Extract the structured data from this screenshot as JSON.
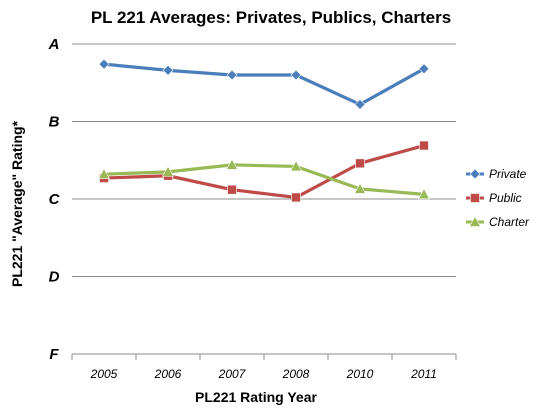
{
  "chart_data": {
    "type": "line",
    "title": "PL 221 Averages: Privates, Publics, Charters",
    "xlabel": "PL221 Rating Year",
    "ylabel": "PL221 \"Average\" Rating*",
    "categories": [
      "2005",
      "2006",
      "2007",
      "2008",
      "2010",
      "2011"
    ],
    "y_ticks": [
      {
        "label": "A",
        "value": 4
      },
      {
        "label": "B",
        "value": 3
      },
      {
        "label": "C",
        "value": 2
      },
      {
        "label": "D",
        "value": 1
      },
      {
        "label": "F",
        "value": 0
      }
    ],
    "ylim": [
      0,
      4
    ],
    "grid": true,
    "legend_position": "right",
    "series": [
      {
        "name": "Private",
        "color": "#4a7ebb",
        "marker": "diamond",
        "values": [
          3.74,
          3.66,
          3.6,
          3.6,
          3.22,
          3.68
        ]
      },
      {
        "name": "Public",
        "color": "#be4b48",
        "marker": "square",
        "values": [
          2.27,
          2.3,
          2.12,
          2.02,
          2.46,
          2.69
        ]
      },
      {
        "name": "Charter",
        "color": "#98b954",
        "marker": "triangle",
        "values": [
          2.32,
          2.35,
          2.44,
          2.42,
          2.13,
          2.06
        ]
      }
    ]
  }
}
